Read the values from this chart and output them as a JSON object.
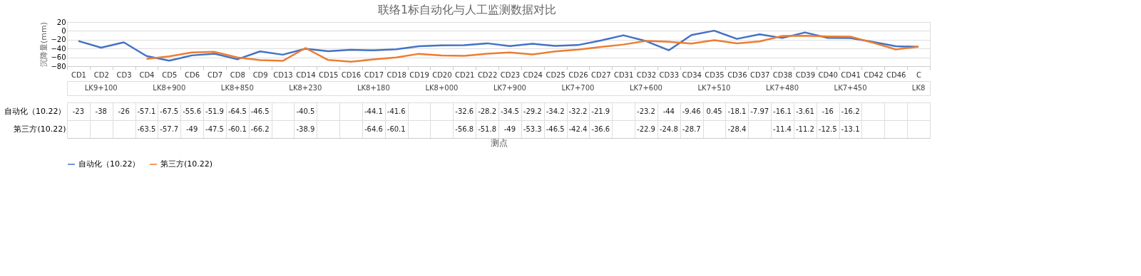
{
  "chart_data": {
    "type": "line",
    "title": "联络1标自动化与人工监测数据对比",
    "ylabel": "沉降量(mm)",
    "categories": [
      "CD1",
      "CD2",
      "CD3",
      "CD4",
      "CD5",
      "CD6",
      "CD7",
      "CD8",
      "CD9",
      "CD13",
      "CD14",
      "CD15",
      "CD16",
      "CD17",
      "CD18",
      "CD19",
      "CD20",
      "CD21",
      "CD22",
      "CD23",
      "CD24",
      "CD25",
      "CD26",
      "CD27",
      "CD31",
      "CD32",
      "CD33",
      "CD34",
      "CD35",
      "CD36",
      "CD37",
      "CD38",
      "CD39",
      "CD40",
      "CD41",
      "CD42",
      "CD46",
      "C"
    ],
    "annotations": [
      "LK9+100",
      "LK8+900",
      "LK8+850",
      "LK8+230",
      "LK8+180",
      "LK8+000",
      "LK7+900",
      "LK7+700",
      "LK7+600",
      "LK7+510",
      "LK7+480",
      "LK7+450",
      "LK8",
      "测点"
    ],
    "series": [
      {
        "name": "自动化（10.22）",
        "color": "#4472c4",
        "values": [
          -23,
          -38,
          -26,
          -57.1,
          -67.5,
          -55.6,
          -51.9,
          -64.5,
          -46.5,
          -54,
          -40.5,
          -46,
          -43,
          -44.1,
          -41.6,
          -35,
          -33,
          -32.6,
          -28.2,
          -34.5,
          -29.2,
          -34.2,
          -32.2,
          -21.9,
          -10,
          -23.2,
          -44,
          -9.46,
          0.45,
          -18.1,
          -7.97,
          -16.1,
          -3.61,
          -16,
          -16.2,
          -25,
          -35,
          -36
        ],
        "value_labels": [
          "-23",
          "-38",
          "-26",
          "-57.1",
          "-67.5",
          "-55.6",
          "-51.9",
          "-64.5",
          "-46.5",
          null,
          "-40.5",
          null,
          null,
          "-44.1",
          "-41.6",
          null,
          null,
          "-32.6",
          "-28.2",
          "-34.5",
          "-29.2",
          "-34.2",
          "-32.2",
          "-21.9",
          null,
          "-23.2",
          "-44",
          "-9.46",
          "0.45",
          "-18.1",
          "-7.97",
          "-16.1",
          "-3.61",
          "-16",
          "-16.2",
          null,
          null,
          null
        ]
      },
      {
        "name": "第三方(10.22)",
        "color": "#ed7d31",
        "values": [
          null,
          null,
          null,
          -63.5,
          -57.7,
          -49,
          -47.5,
          -60.1,
          -66.2,
          -68,
          -38.9,
          -66,
          -70,
          -64.6,
          -60.1,
          -52,
          -56,
          -56.8,
          -51.8,
          -49,
          -53.3,
          -46.5,
          -42.4,
          -36.6,
          -31,
          -22.9,
          -24.8,
          -28.7,
          -21,
          -28.4,
          -24,
          -11.4,
          -11.2,
          -12.5,
          -13.1,
          -27,
          -42,
          -36
        ],
        "value_labels": [
          null,
          null,
          null,
          "-63.5",
          "-57.7",
          "-49",
          "-47.5",
          "-60.1",
          "-66.2",
          null,
          "-38.9",
          null,
          null,
          "-64.6",
          "-60.1",
          null,
          null,
          "-56.8",
          "-51.8",
          "-49",
          "-53.3",
          "-46.5",
          "-42.4",
          "-36.6",
          null,
          "-22.9",
          "-24.8",
          "-28.7",
          null,
          "-28.4",
          null,
          "-11.4",
          "-11.2",
          "-12.5",
          "-13.1",
          null,
          null,
          null
        ]
      }
    ],
    "ylim": [
      -80,
      20
    ],
    "yticks": [
      -80,
      -60,
      -40,
      -20,
      0,
      20
    ],
    "grid": "y",
    "legend": "bottom",
    "marker": "none",
    "line_style": "solid"
  }
}
